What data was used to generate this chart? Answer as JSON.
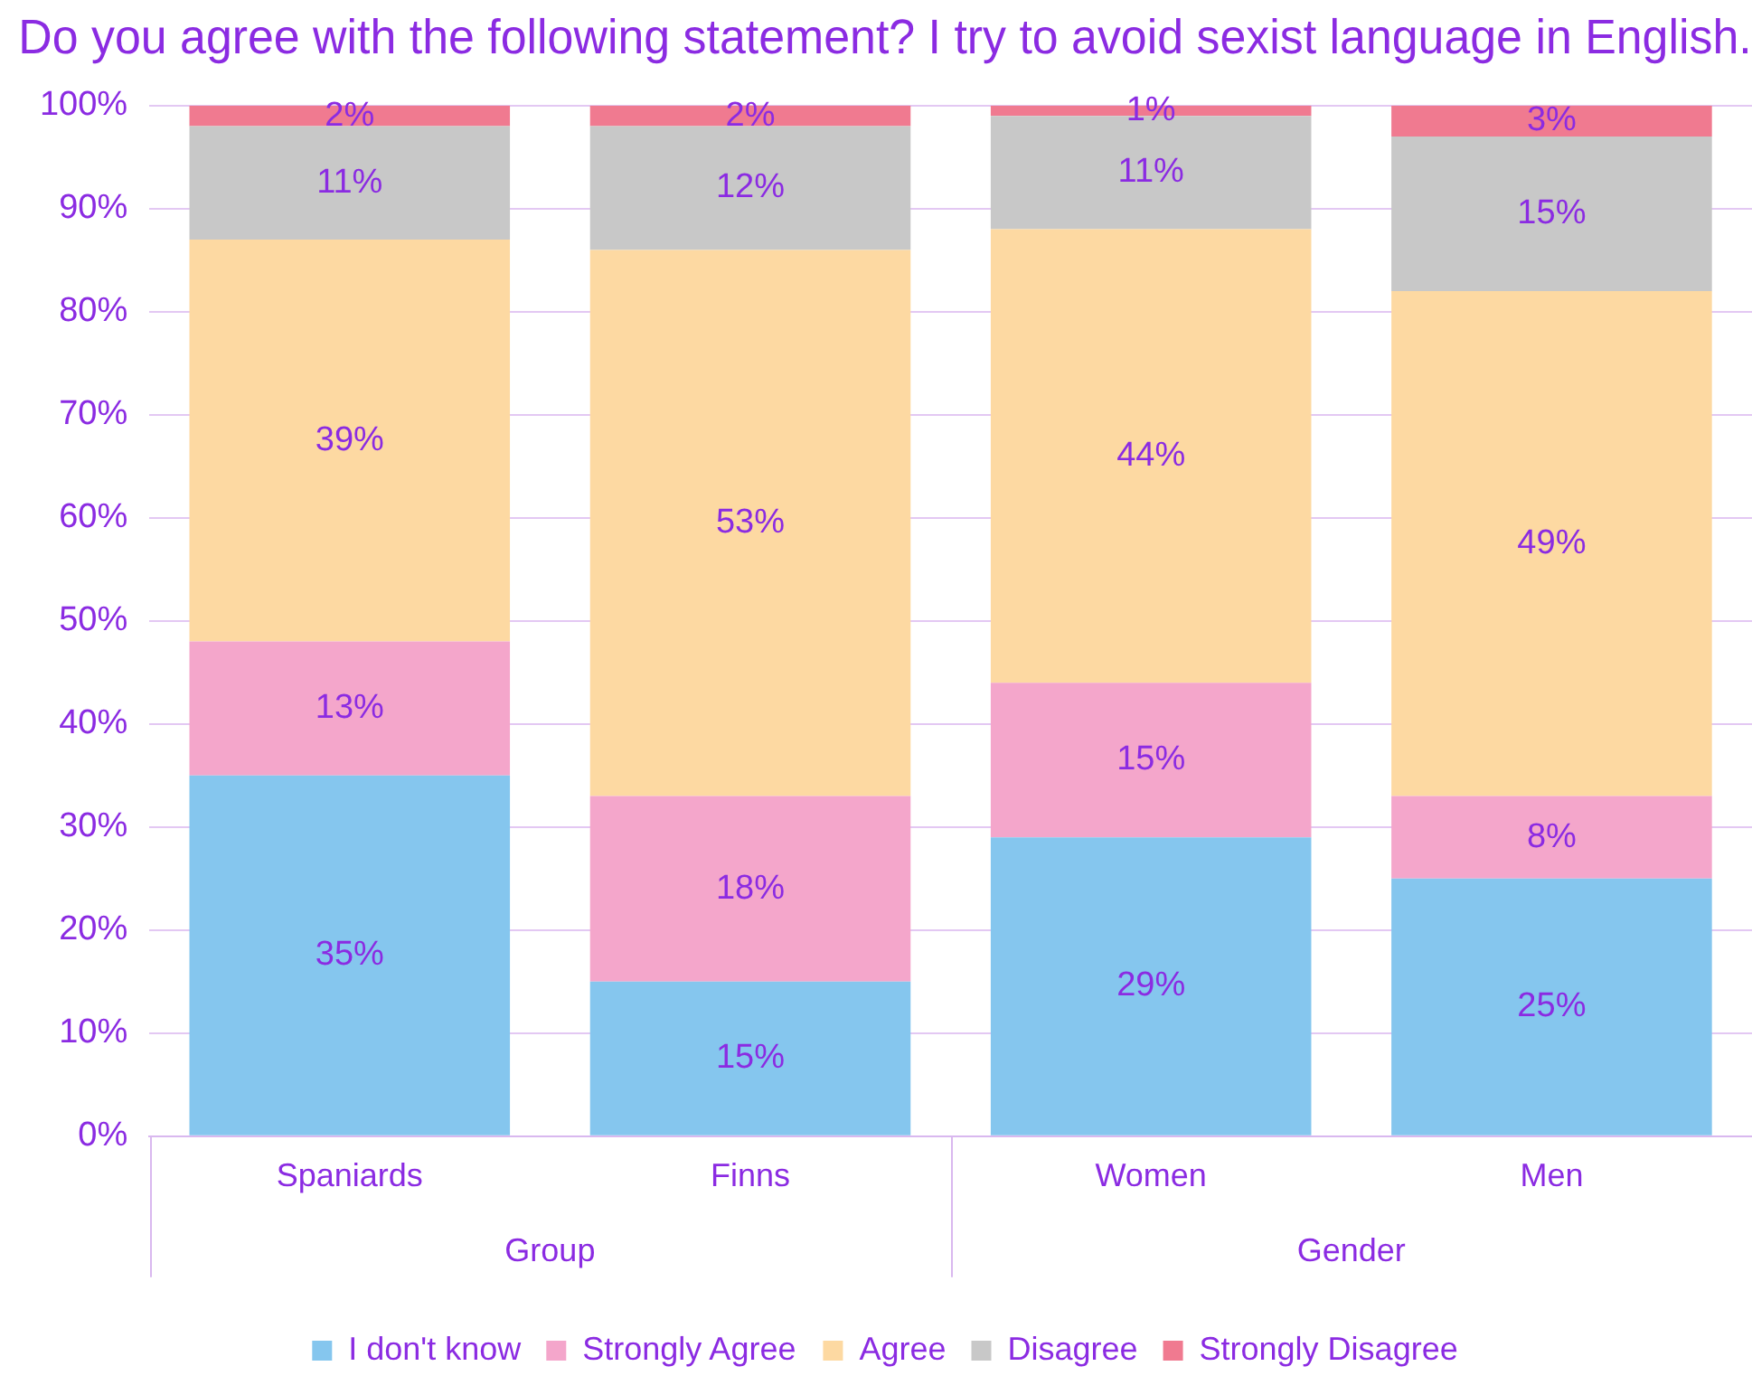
{
  "chart_data": {
    "type": "bar",
    "stacked": true,
    "title": "Do you agree with the following statement? I try to avoid sexist language in English.",
    "categories": [
      "Spaniards",
      "Finns",
      "Women",
      "Men"
    ],
    "series": [
      {
        "name": "I don't know",
        "color": "#85c6ee",
        "values": [
          35,
          15,
          29,
          25
        ],
        "value_labels": [
          "35%",
          "15%",
          "29%",
          "25%"
        ]
      },
      {
        "name": "Strongly Agree",
        "color": "#f4a6cb",
        "values": [
          13,
          18,
          15,
          8
        ],
        "value_labels": [
          "13%",
          "18%",
          "15%",
          "8%"
        ]
      },
      {
        "name": "Agree",
        "color": "#fdd9a2",
        "values": [
          39,
          53,
          44,
          49
        ],
        "value_labels": [
          "39%",
          "53%",
          "44%",
          "49%"
        ]
      },
      {
        "name": "Disagree",
        "color": "#c8c8c8",
        "values": [
          11,
          12,
          11,
          15
        ],
        "value_labels": [
          "11%",
          "12%",
          "11%",
          "15%"
        ]
      },
      {
        "name": "Strongly Disagree",
        "color": "#f07a90",
        "values": [
          2,
          2,
          1,
          3
        ],
        "value_labels": [
          "2%",
          "2%",
          "1%",
          "3%"
        ]
      }
    ],
    "ylim": [
      0,
      100
    ],
    "yticks": [
      {
        "value": 0,
        "label": "0%"
      },
      {
        "value": 10,
        "label": "10%"
      },
      {
        "value": 20,
        "label": "20%"
      },
      {
        "value": 30,
        "label": "30%"
      },
      {
        "value": 40,
        "label": "40%"
      },
      {
        "value": 50,
        "label": "50%"
      },
      {
        "value": 60,
        "label": "60%"
      },
      {
        "value": 70,
        "label": "70%"
      },
      {
        "value": 80,
        "label": "80%"
      },
      {
        "value": 90,
        "label": "90%"
      },
      {
        "value": 100,
        "label": "100%"
      }
    ],
    "grid": "y",
    "legend": "bottom",
    "annotations": [
      "Group",
      "Gender"
    ]
  }
}
